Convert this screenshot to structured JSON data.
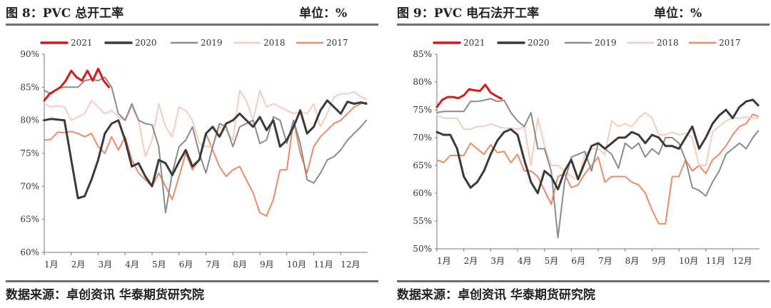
{
  "panels": [
    {
      "title": "图 8：PVC 总开工率",
      "unit": "单位：%",
      "source": "数据来源：卓创资讯 华泰期货研究院"
    },
    {
      "title": "图 9：PVC 电石法开工率",
      "unit": "单位：%",
      "source": "数据来源：卓创资讯 华泰期货研究院"
    }
  ],
  "chart_data": [
    {
      "type": "line",
      "title": "图 8：PVC 总开工率",
      "ylabel": "单位：%",
      "ylim": [
        60,
        90
      ],
      "ytick_step": 5,
      "ytick_suffix": "%",
      "xlim": [
        0,
        12
      ],
      "x_ticks": [
        0,
        1,
        2,
        3,
        4,
        5,
        6,
        7,
        8,
        9,
        10,
        11
      ],
      "x_tick_labels": [
        "1月",
        "2月",
        "3月",
        "4月",
        "5月",
        "6月",
        "7月",
        "8月",
        "9月",
        "10月",
        "11月",
        "12月"
      ],
      "legend_position": "top",
      "series": [
        {
          "name": "2021",
          "color": "#d7191c",
          "width": 3,
          "x": [
            0,
            0.2,
            0.4,
            0.6,
            0.8,
            1.0,
            1.2,
            1.4,
            1.6,
            1.8,
            2.0,
            2.2,
            2.4
          ],
          "y": [
            83,
            84,
            84.5,
            85,
            86,
            87.5,
            86.5,
            86,
            87.5,
            86,
            87.8,
            86,
            85
          ]
        },
        {
          "name": "2020",
          "color": "#3a3a3a",
          "width": 3,
          "x": [
            0,
            0.25,
            0.5,
            0.75,
            1.0,
            1.25,
            1.5,
            1.75,
            2.0,
            2.25,
            2.5,
            2.75,
            3.0,
            3.25,
            3.5,
            3.75,
            4.0,
            4.25,
            4.5,
            4.75,
            5.0,
            5.25,
            5.5,
            5.75,
            6.0,
            6.25,
            6.5,
            6.75,
            7.0,
            7.25,
            7.5,
            7.75,
            8.0,
            8.25,
            8.5,
            8.75,
            9.0,
            9.25,
            9.5,
            9.75,
            10.0,
            10.25,
            10.5,
            10.75,
            11.0,
            11.25,
            11.5,
            11.75,
            11.95
          ],
          "y": [
            80,
            80.2,
            80.1,
            80,
            74,
            68.2,
            68.5,
            71,
            74,
            78,
            79.5,
            80,
            77,
            73,
            73.5,
            71.5,
            70,
            74,
            73.5,
            71.7,
            73.7,
            75.5,
            73,
            74,
            78,
            79,
            77.5,
            79.5,
            80,
            81,
            80,
            79,
            80.5,
            78.5,
            80,
            76,
            77,
            79,
            81.5,
            78,
            79,
            81.5,
            83,
            82,
            81,
            82.8,
            82.5,
            82.7,
            82.5
          ]
        },
        {
          "name": "2019",
          "color": "#8c8c8c",
          "width": 2,
          "x": [
            0,
            0.25,
            0.5,
            0.75,
            1.0,
            1.25,
            1.5,
            1.75,
            2.0,
            2.25,
            2.5,
            2.75,
            3.0,
            3.25,
            3.5,
            3.75,
            4.0,
            4.25,
            4.5,
            4.75,
            5.0,
            5.25,
            5.5,
            5.75,
            6.0,
            6.25,
            6.5,
            6.75,
            7.0,
            7.25,
            7.5,
            7.75,
            8.0,
            8.25,
            8.5,
            8.75,
            9.0,
            9.25,
            9.5,
            9.75,
            10.0,
            10.25,
            10.5,
            10.75,
            11.0,
            11.25,
            11.5,
            11.75,
            11.95
          ],
          "y": [
            84.5,
            84,
            84.8,
            85,
            85,
            85,
            86,
            86.2,
            86,
            86.5,
            85,
            81,
            80,
            82.5,
            80,
            79.5,
            79.3,
            76,
            66,
            72,
            76,
            77,
            79,
            75,
            72,
            76,
            79.5,
            79,
            76,
            79,
            79.5,
            80,
            76.5,
            77,
            80.5,
            80,
            76.5,
            80,
            76.5,
            71,
            70.5,
            72,
            74,
            74.5,
            75.5,
            77,
            78,
            79,
            80
          ]
        },
        {
          "name": "2018",
          "color": "#f6cdb9",
          "width": 2,
          "x": [
            0,
            0.25,
            0.5,
            0.75,
            1.0,
            1.25,
            1.5,
            1.75,
            2.0,
            2.25,
            2.5,
            2.75,
            3.0,
            3.25,
            3.5,
            3.75,
            4.0,
            4.25,
            4.5,
            4.75,
            5.0,
            5.25,
            5.5,
            5.75,
            6.0,
            6.25,
            6.5,
            6.75,
            7.0,
            7.25,
            7.5,
            7.75,
            8.0,
            8.25,
            8.5,
            8.75,
            9.0,
            9.25,
            9.5,
            9.75,
            10.0,
            10.25,
            10.5,
            10.75,
            11.0,
            11.25,
            11.5,
            11.75,
            11.95
          ],
          "y": [
            82.5,
            82,
            82.2,
            82,
            80,
            80.5,
            81,
            83,
            82,
            81,
            81.5,
            80.5,
            80,
            82,
            80,
            74.5,
            77,
            82.5,
            79,
            77.5,
            82,
            81.5,
            80,
            76.5,
            76,
            76,
            79,
            78.5,
            77,
            84.5,
            83,
            80,
            84.5,
            82,
            82.5,
            82,
            81.5,
            81,
            81.3,
            81,
            82.5,
            79,
            81,
            83.5,
            84,
            84,
            84.3,
            83.5,
            83.2
          ]
        },
        {
          "name": "2017",
          "color": "#ee8a64",
          "width": 2,
          "x": [
            0,
            0.25,
            0.5,
            0.75,
            1.0,
            1.25,
            1.5,
            1.75,
            2.0,
            2.25,
            2.5,
            2.75,
            3.0,
            3.25,
            3.5,
            3.75,
            4.0,
            4.25,
            4.5,
            4.75,
            5.0,
            5.25,
            5.5,
            5.75,
            6.0,
            6.25,
            6.5,
            6.75,
            7.0,
            7.25,
            7.5,
            7.75,
            8.0,
            8.25,
            8.5,
            8.75,
            9.0,
            9.25,
            9.5,
            9.75,
            10.0,
            10.25,
            10.5,
            10.75,
            11.0,
            11.25,
            11.5,
            11.75,
            11.95
          ],
          "y": [
            77,
            77.1,
            78.2,
            78.1,
            78.3,
            78,
            77.5,
            78,
            76,
            75,
            77.5,
            75.5,
            77.5,
            74,
            72,
            71,
            70,
            72,
            70,
            68,
            71.5,
            75,
            72.5,
            74,
            78,
            75.5,
            73,
            71.5,
            72.5,
            73,
            71,
            69,
            66,
            65.5,
            68,
            72.5,
            72.5,
            80,
            75,
            72,
            76,
            77.5,
            78.5,
            79.5,
            80,
            81,
            82,
            82.5,
            82.7
          ]
        }
      ]
    },
    {
      "type": "line",
      "title": "图 9：PVC 电石法开工率",
      "ylabel": "单位：%",
      "ylim": [
        50,
        85
      ],
      "ytick_step": 5,
      "ytick_suffix": "%",
      "xlim": [
        0,
        12
      ],
      "x_ticks": [
        0,
        1,
        2,
        3,
        4,
        5,
        6,
        7,
        8,
        9,
        10,
        11
      ],
      "x_tick_labels": [
        "1月",
        "2月",
        "3月",
        "4月",
        "5月",
        "6月",
        "7月",
        "8月",
        "9月",
        "10月",
        "11月",
        "12月"
      ],
      "legend_position": "top",
      "series": [
        {
          "name": "2021",
          "color": "#d7191c",
          "width": 3,
          "x": [
            0,
            0.2,
            0.4,
            0.6,
            0.8,
            1.0,
            1.2,
            1.4,
            1.6,
            1.8,
            2.0,
            2.2,
            2.4
          ],
          "y": [
            75.5,
            76.8,
            77.3,
            77.3,
            77.1,
            77.6,
            78.7,
            78.5,
            78.4,
            79.5,
            78.1,
            77.5,
            77
          ]
        },
        {
          "name": "2020",
          "color": "#3a3a3a",
          "width": 3,
          "x": [
            0,
            0.25,
            0.5,
            0.75,
            1.0,
            1.25,
            1.5,
            1.75,
            2.0,
            2.25,
            2.5,
            2.75,
            3.0,
            3.25,
            3.5,
            3.75,
            4.0,
            4.25,
            4.5,
            4.75,
            5.0,
            5.25,
            5.5,
            5.75,
            6.0,
            6.25,
            6.5,
            6.75,
            7.0,
            7.25,
            7.5,
            7.75,
            8.0,
            8.25,
            8.5,
            8.75,
            9.0,
            9.25,
            9.5,
            9.75,
            10.0,
            10.25,
            10.5,
            10.75,
            11.0,
            11.25,
            11.5,
            11.75,
            11.95
          ],
          "y": [
            71,
            70.5,
            70.5,
            68,
            63,
            61,
            62,
            64,
            67,
            69.5,
            71,
            71.5,
            70.5,
            66,
            62,
            60,
            64,
            63,
            60.7,
            64,
            66,
            62.5,
            65.5,
            68.5,
            69,
            68,
            69,
            70,
            70,
            71,
            70.5,
            69,
            70.5,
            70,
            68.5,
            68.5,
            68,
            70,
            72,
            68,
            70,
            72.5,
            74,
            75,
            73.5,
            75.5,
            76.5,
            76.8,
            75.8
          ]
        },
        {
          "name": "2019",
          "color": "#8c8c8c",
          "width": 2,
          "x": [
            0,
            0.25,
            0.5,
            0.75,
            1.0,
            1.25,
            1.5,
            1.75,
            2.0,
            2.25,
            2.5,
            2.75,
            3.0,
            3.25,
            3.5,
            3.75,
            4.0,
            4.25,
            4.5,
            4.75,
            5.0,
            5.25,
            5.5,
            5.75,
            6.0,
            6.25,
            6.5,
            6.75,
            7.0,
            7.25,
            7.5,
            7.75,
            8.0,
            8.25,
            8.5,
            8.75,
            9.0,
            9.25,
            9.5,
            9.75,
            10.0,
            10.25,
            10.5,
            10.75,
            11.0,
            11.25,
            11.5,
            11.75,
            11.95
          ],
          "y": [
            74.5,
            74.7,
            74.7,
            74.7,
            74.7,
            76.5,
            76.5,
            76.7,
            77,
            76.5,
            76.7,
            74.5,
            73,
            72,
            74.5,
            68,
            68,
            64,
            52,
            62,
            66.5,
            67,
            67.5,
            64,
            69,
            68,
            67,
            64.5,
            69,
            68,
            69,
            66.5,
            68,
            67,
            70,
            70,
            69,
            66,
            61,
            60.5,
            59.5,
            62,
            64,
            67,
            68,
            69,
            68,
            70,
            71.2
          ]
        },
        {
          "name": "2018",
          "color": "#f6cdb9",
          "width": 2,
          "x": [
            0,
            0.25,
            0.5,
            0.75,
            1.0,
            1.25,
            1.5,
            1.75,
            2.0,
            2.25,
            2.5,
            2.75,
            3.0,
            3.25,
            3.5,
            3.75,
            4.0,
            4.25,
            4.5,
            4.75,
            5.0,
            5.25,
            5.5,
            5.75,
            6.0,
            6.25,
            6.5,
            6.75,
            7.0,
            7.25,
            7.5,
            7.75,
            8.0,
            8.25,
            8.5,
            8.75,
            9.0,
            9.25,
            9.5,
            9.75,
            10.0,
            10.25,
            10.5,
            10.75,
            11.0,
            11.25,
            11.5,
            11.75,
            11.95
          ],
          "y": [
            74,
            73.5,
            73.5,
            73.5,
            71.5,
            71.5,
            72,
            72,
            72.5,
            72,
            71.7,
            71.7,
            71.5,
            72,
            65,
            73.5,
            68.5,
            65,
            65,
            64,
            63,
            62.5,
            67,
            68,
            68,
            67,
            73,
            72,
            72.5,
            72,
            73.5,
            74.5,
            73.5,
            70.5,
            70.5,
            71,
            70.5,
            70.8,
            70,
            65,
            65,
            71,
            72,
            73,
            73.5,
            73.5,
            73.7,
            73.5,
            73.5
          ]
        },
        {
          "name": "2017",
          "color": "#ee8a64",
          "width": 2,
          "x": [
            0,
            0.25,
            0.5,
            0.75,
            1.0,
            1.25,
            1.5,
            1.75,
            2.0,
            2.25,
            2.5,
            2.75,
            3.0,
            3.25,
            3.5,
            3.75,
            4.0,
            4.25,
            4.5,
            4.75,
            5.0,
            5.25,
            5.5,
            5.75,
            6.0,
            6.25,
            6.5,
            6.75,
            7.0,
            7.25,
            7.5,
            7.75,
            8.0,
            8.25,
            8.5,
            8.75,
            9.0,
            9.25,
            9.5,
            9.75,
            10.0,
            10.25,
            10.5,
            10.75,
            11.0,
            11.25,
            11.5,
            11.75,
            11.95
          ],
          "y": [
            66,
            65.5,
            66.8,
            66.8,
            66.8,
            69,
            68,
            67,
            68.7,
            67.3,
            67.5,
            65.5,
            67,
            64,
            64,
            63,
            60.5,
            58,
            63,
            63.5,
            61,
            61.5,
            63.5,
            65,
            66.5,
            62,
            63,
            63,
            63,
            62,
            61.5,
            60,
            57,
            54.5,
            54.5,
            63,
            63,
            66,
            64,
            65,
            63.5,
            66,
            67,
            68.5,
            70.5,
            72,
            72.5,
            74.2,
            73.8
          ]
        }
      ]
    }
  ]
}
